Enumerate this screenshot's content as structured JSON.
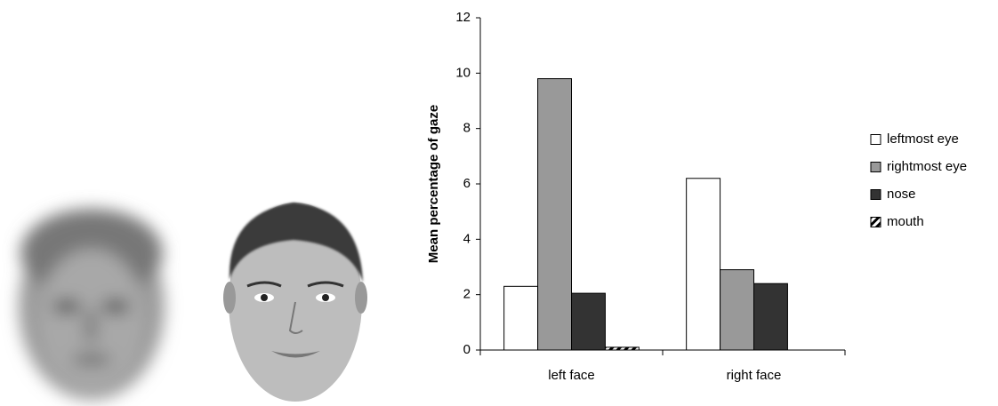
{
  "chart_data": {
    "type": "bar",
    "ylabel": "Mean percentage of gaze",
    "categories": [
      "left face",
      "right face"
    ],
    "series": [
      {
        "name": "leftmost eye",
        "color": "#ffffff",
        "values": [
          2.3,
          6.2
        ]
      },
      {
        "name": "rightmost eye",
        "color": "#999999",
        "values": [
          9.8,
          2.9
        ]
      },
      {
        "name": "nose",
        "color": "#333333",
        "values": [
          2.05,
          2.4
        ]
      },
      {
        "name": "mouth",
        "color": "#000000",
        "values": [
          0.1,
          0
        ]
      }
    ],
    "ylim": [
      0,
      12
    ],
    "yticks": [
      0,
      2,
      4,
      6,
      8,
      10,
      12
    ],
    "grid": false,
    "legend": "right"
  }
}
